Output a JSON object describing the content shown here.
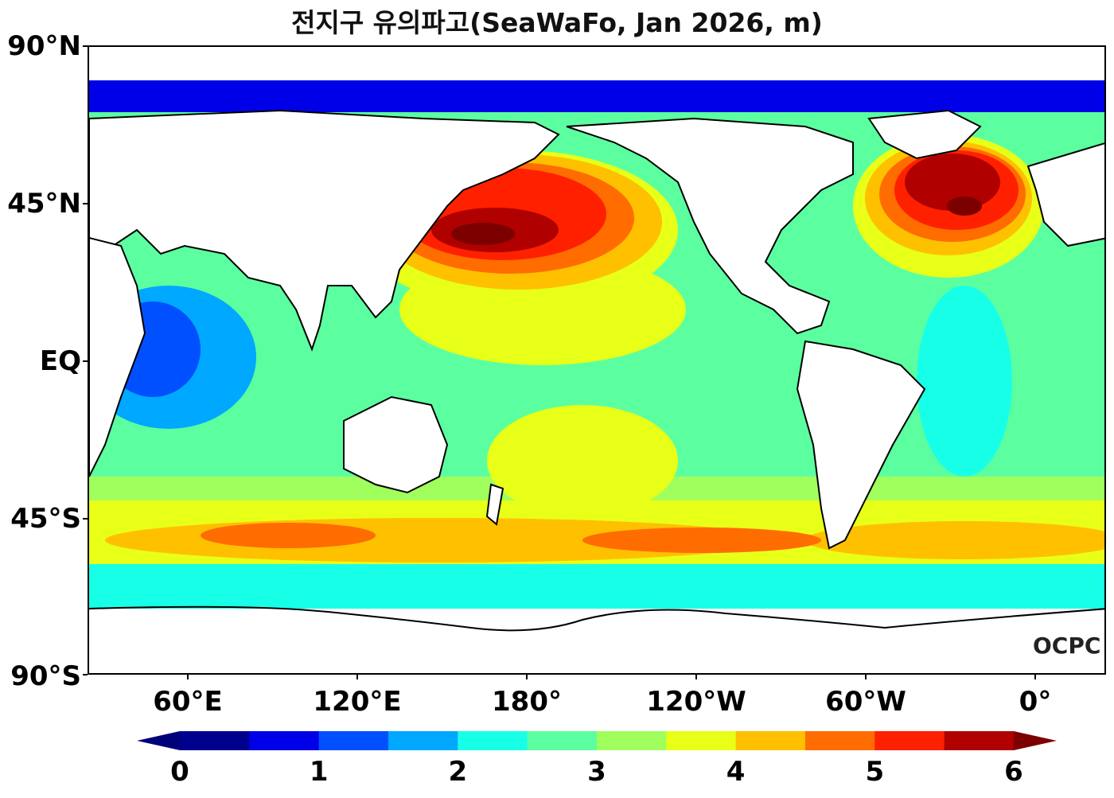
{
  "title": "전지구 유의파고(SeaWaFo, Jan 2026, m)",
  "logo": "OCPC",
  "lat_labels": [
    "90°N",
    "45°N",
    "EQ",
    "45°S",
    "90°S"
  ],
  "lon_labels": [
    "60°E",
    "120°E",
    "180°",
    "120°W",
    "60°W",
    "0°"
  ],
  "colorbar": {
    "labels": [
      "0",
      "1",
      "2",
      "3",
      "4",
      "5",
      "6"
    ],
    "levels": [
      0,
      0.5,
      1,
      1.5,
      2,
      2.5,
      3,
      3.5,
      4,
      4.5,
      5,
      5.5,
      6
    ],
    "colors": [
      "#00008e",
      "#0000e8",
      "#0050ff",
      "#00a8ff",
      "#18ffe8",
      "#5cffa0",
      "#a0ff5c",
      "#e8ff18",
      "#ffc000",
      "#ff6c00",
      "#ff2000",
      "#b00000"
    ],
    "under_color": "#00007a",
    "over_color": "#7c0000"
  },
  "colors": {
    "land": "#ffffff",
    "coast": "#000000"
  }
}
